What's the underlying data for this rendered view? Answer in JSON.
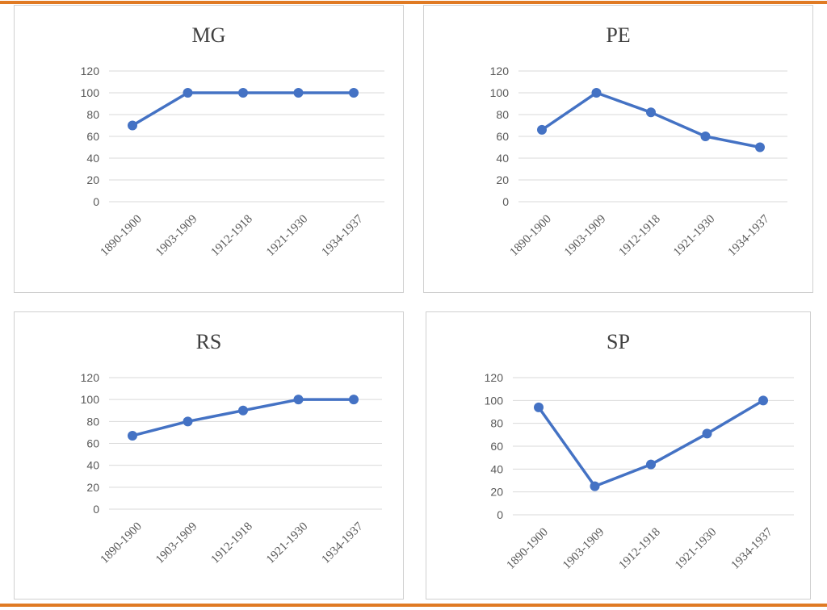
{
  "colors": {
    "accent": "#e07a23",
    "series": "#4472c4",
    "grid": "#d9d9d9",
    "text": "#595959"
  },
  "chart_data": [
    {
      "type": "line",
      "title": "MG",
      "categories": [
        "1890-1900",
        "1903-1909",
        "1912-1918",
        "1921-1930",
        "1934-1937"
      ],
      "values": [
        70,
        100,
        100,
        100,
        100
      ],
      "ylim": [
        0,
        120
      ],
      "yticks": [
        "0",
        "20",
        "40",
        "60",
        "80",
        "100",
        "120"
      ],
      "grid": true,
      "legend": "none",
      "xlabel": "",
      "ylabel": ""
    },
    {
      "type": "line",
      "title": "PE",
      "categories": [
        "1890-1900",
        "1903-1909",
        "1912-1918",
        "1921-1930",
        "1934-1937"
      ],
      "values": [
        66,
        100,
        82,
        60,
        50
      ],
      "ylim": [
        0,
        120
      ],
      "yticks": [
        "0",
        "20",
        "40",
        "60",
        "80",
        "100",
        "120"
      ],
      "grid": true,
      "legend": "none",
      "xlabel": "",
      "ylabel": ""
    },
    {
      "type": "line",
      "title": "RS",
      "categories": [
        "1890-1900",
        "1903-1909",
        "1912-1918",
        "1921-1930",
        "1934-1937"
      ],
      "values": [
        67,
        80,
        90,
        100,
        100
      ],
      "ylim": [
        0,
        120
      ],
      "yticks": [
        "0",
        "20",
        "40",
        "60",
        "80",
        "100",
        "120"
      ],
      "grid": true,
      "legend": "none",
      "xlabel": "",
      "ylabel": ""
    },
    {
      "type": "line",
      "title": "SP",
      "categories": [
        "1890-1900",
        "1903-1909",
        "1912-1918",
        "1921-1930",
        "1934-1937"
      ],
      "values": [
        94,
        25,
        44,
        71,
        100
      ],
      "ylim": [
        0,
        120
      ],
      "yticks": [
        "0",
        "20",
        "40",
        "60",
        "80",
        "100",
        "120"
      ],
      "grid": true,
      "legend": "none",
      "xlabel": "",
      "ylabel": ""
    }
  ]
}
